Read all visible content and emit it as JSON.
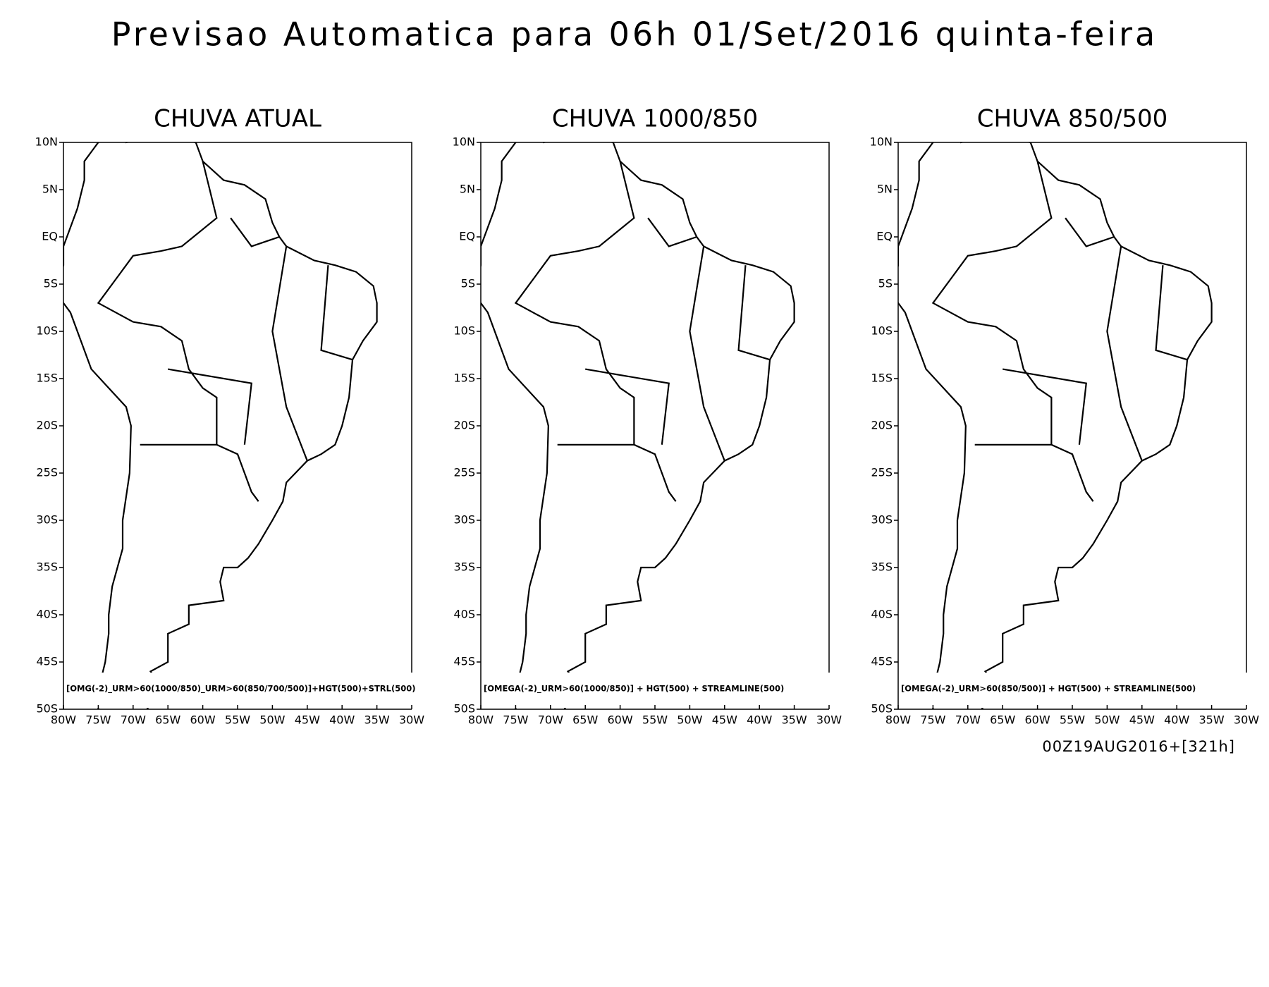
{
  "title": "Previsao Automatica para 06h 01/Set/2016 quinta-feira",
  "map": {
    "lon_range": [
      -80,
      -30
    ],
    "lat_range": [
      -50,
      10
    ],
    "lat_ticks": [
      {
        "value": 10,
        "label": "10N"
      },
      {
        "value": 5,
        "label": "5N"
      },
      {
        "value": 0,
        "label": "EQ"
      },
      {
        "value": -5,
        "label": "5S"
      },
      {
        "value": -10,
        "label": "10S"
      },
      {
        "value": -15,
        "label": "15S"
      },
      {
        "value": -20,
        "label": "20S"
      },
      {
        "value": -25,
        "label": "25S"
      },
      {
        "value": -30,
        "label": "30S"
      },
      {
        "value": -35,
        "label": "35S"
      },
      {
        "value": -40,
        "label": "40S"
      },
      {
        "value": -45,
        "label": "45S"
      },
      {
        "value": -50,
        "label": "50S"
      }
    ],
    "lon_ticks": [
      {
        "value": -80,
        "label": "80W"
      },
      {
        "value": -75,
        "label": "75W"
      },
      {
        "value": -70,
        "label": "70W"
      },
      {
        "value": -65,
        "label": "65W"
      },
      {
        "value": -60,
        "label": "60W"
      },
      {
        "value": -55,
        "label": "55W"
      },
      {
        "value": -50,
        "label": "50W"
      },
      {
        "value": -45,
        "label": "45W"
      },
      {
        "value": -40,
        "label": "40W"
      },
      {
        "value": -35,
        "label": "35W"
      },
      {
        "value": -30,
        "label": "30W"
      }
    ]
  },
  "panels": [
    {
      "title": "CHUVA ATUAL",
      "caption": "[OMG(-2)_URM>60(1000/850)_URM>60(850/700/500)]+HGT(500)+STRL(500)"
    },
    {
      "title": "CHUVA 1000/850",
      "caption": "[OMEGA(-2)_URM>60(1000/850)] + HGT(500) + STREAMLINE(500)"
    },
    {
      "title": "CHUVA 850/500",
      "caption": "[OMEGA(-2)_URM>60(850/500)] + HGT(500) + STREAMLINE(500)"
    }
  ],
  "timestamp": "00Z19AUG2016+[321h]"
}
